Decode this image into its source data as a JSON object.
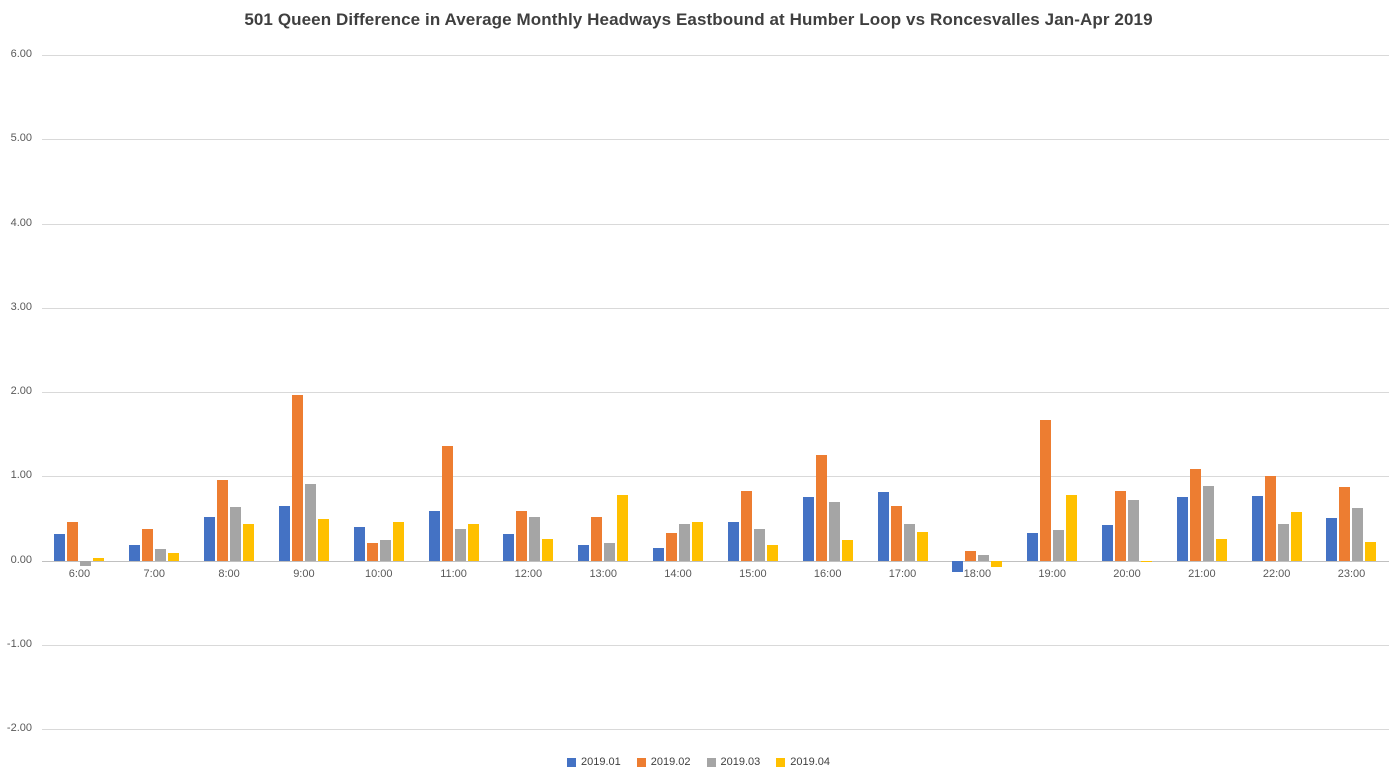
{
  "chart_data": {
    "type": "bar",
    "title": "501 Queen Difference in Average Monthly Headways Eastbound at Humber Loop vs Roncesvalles Jan-Apr 2019",
    "xlabel": "",
    "ylabel": "",
    "ylim": [
      -2,
      6
    ],
    "ytick_step": 1,
    "y_ticks": [
      "6.00",
      "5.00",
      "4.00",
      "3.00",
      "2.00",
      "1.00",
      "0.00",
      "-1.00",
      "-2.00"
    ],
    "grid": true,
    "legend_position": "bottom",
    "categories": [
      "6:00",
      "7:00",
      "8:00",
      "9:00",
      "10:00",
      "11:00",
      "12:00",
      "13:00",
      "14:00",
      "15:00",
      "16:00",
      "17:00",
      "18:00",
      "19:00",
      "20:00",
      "21:00",
      "22:00",
      "23:00"
    ],
    "series": [
      {
        "name": "2019.01",
        "color": "#4472C4",
        "values": [
          0.31,
          0.18,
          0.52,
          0.65,
          0.4,
          0.59,
          0.31,
          0.18,
          0.15,
          0.46,
          0.75,
          0.81,
          -0.14,
          0.33,
          0.42,
          0.75,
          0.77,
          0.5
        ]
      },
      {
        "name": "2019.02",
        "color": "#ED7D31",
        "values": [
          0.46,
          0.38,
          0.96,
          1.97,
          0.21,
          1.36,
          0.59,
          0.52,
          0.33,
          0.83,
          1.25,
          0.65,
          0.11,
          1.67,
          0.83,
          1.09,
          1.0,
          0.87
        ]
      },
      {
        "name": "2019.03",
        "color": "#A5A5A5",
        "values": [
          -0.06,
          0.14,
          0.63,
          0.91,
          0.24,
          0.37,
          0.52,
          0.21,
          0.43,
          0.37,
          0.69,
          0.43,
          0.06,
          0.36,
          0.72,
          0.88,
          0.43,
          0.62
        ]
      },
      {
        "name": "2019.04",
        "color": "#FFC000",
        "values": [
          0.03,
          0.09,
          0.43,
          0.49,
          0.46,
          0.43,
          0.25,
          0.78,
          0.46,
          0.18,
          0.24,
          0.34,
          -0.08,
          0.78,
          -0.02,
          0.25,
          0.57,
          0.22
        ]
      }
    ]
  }
}
